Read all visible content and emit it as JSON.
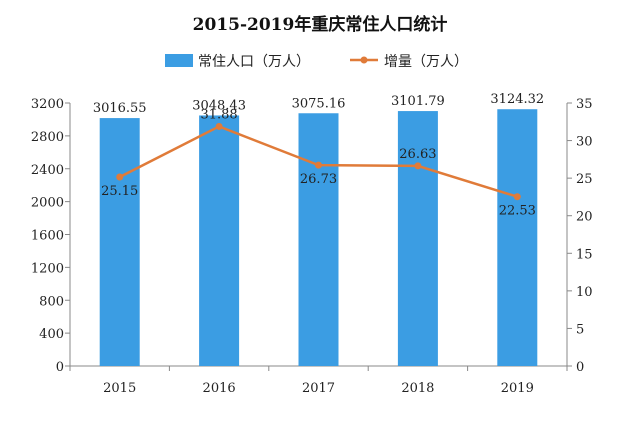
{
  "chart_data": {
    "type": "bar+line",
    "title": "2015-2019年重庆常住人口统计",
    "categories": [
      "2015",
      "2016",
      "2017",
      "2018",
      "2019"
    ],
    "series": [
      {
        "name": "常住人口（万人）",
        "type": "bar",
        "axis": "left",
        "color": "#3b9de3",
        "values": [
          3016.55,
          3048.43,
          3075.16,
          3101.79,
          3124.32
        ],
        "labels": [
          "3016.55",
          "3048.43",
          "3075.16",
          "3101.79",
          "3124.32"
        ]
      },
      {
        "name": "增量（万人）",
        "type": "line",
        "axis": "right",
        "color": "#e07b39",
        "values": [
          25.15,
          31.88,
          26.73,
          26.63,
          22.53
        ],
        "labels": [
          "25.15",
          "31.88",
          "26.73",
          "26.63",
          "22.53"
        ]
      }
    ],
    "y_left": {
      "lim": [
        0,
        3200
      ],
      "ticks": [
        "0",
        "400",
        "800",
        "1200",
        "1600",
        "2000",
        "2400",
        "2800",
        "3200"
      ]
    },
    "y_right": {
      "lim": [
        0,
        35
      ],
      "ticks": [
        "0",
        "5",
        "10",
        "15",
        "20",
        "25",
        "30",
        "35"
      ]
    },
    "legend_position": "top-center",
    "grid": false
  }
}
